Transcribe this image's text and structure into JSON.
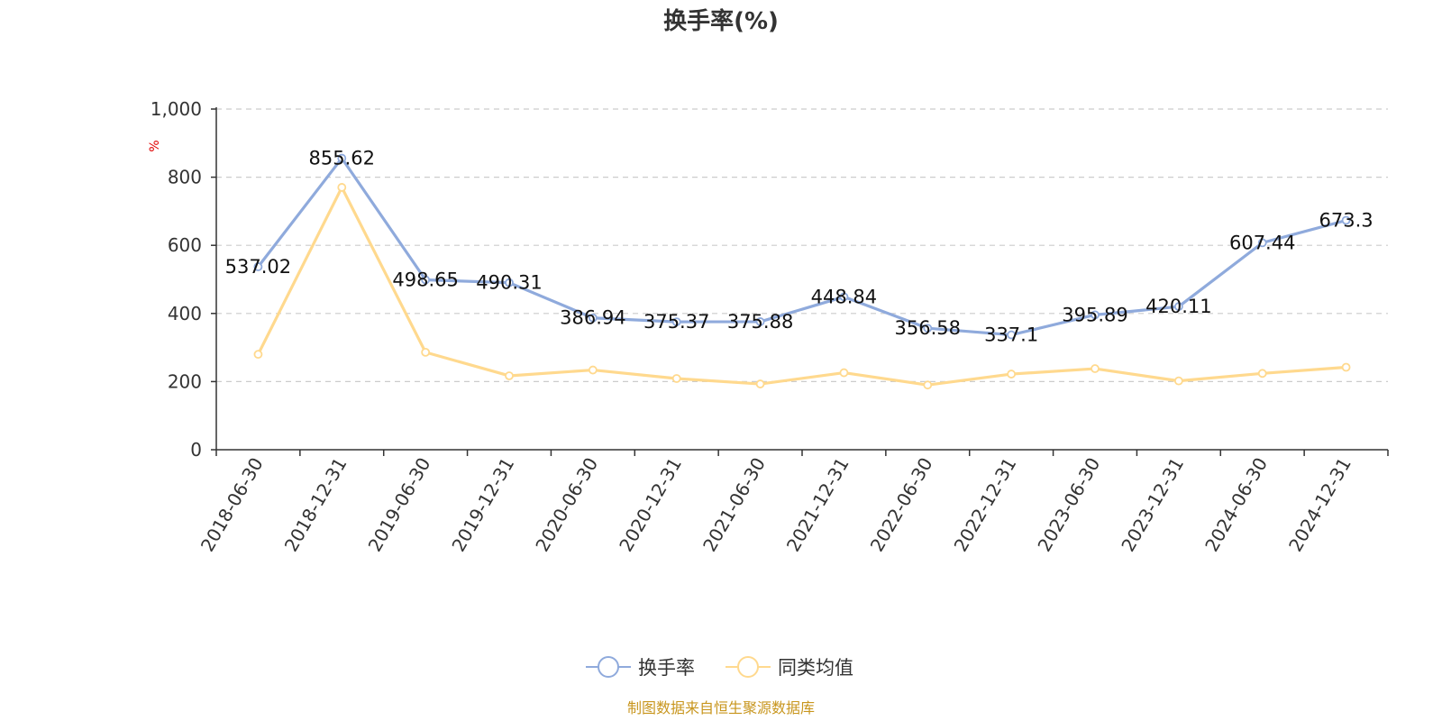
{
  "chart_data": {
    "type": "line",
    "title": "换手率(%)",
    "ylabel": "%",
    "ylim": [
      0,
      1000
    ],
    "yticks": [
      "0",
      "200",
      "400",
      "600",
      "800",
      "1,000"
    ],
    "ytick_values": [
      0,
      200,
      400,
      600,
      800,
      1000
    ],
    "categories": [
      "2018-06-30",
      "2018-12-31",
      "2019-06-30",
      "2019-12-31",
      "2020-06-30",
      "2020-12-31",
      "2021-06-30",
      "2021-12-31",
      "2022-06-30",
      "2022-12-31",
      "2023-06-30",
      "2023-12-31",
      "2024-06-30",
      "2024-12-31"
    ],
    "grid": true,
    "legend_position": "bottom",
    "series": [
      {
        "name": "换手率",
        "color": "#8faadc",
        "values": [
          537.02,
          855.62,
          498.65,
          490.31,
          386.94,
          375.37,
          375.88,
          448.84,
          356.58,
          337.1,
          395.89,
          420.11,
          607.44,
          673.3
        ],
        "labels": [
          "537.02",
          "855.62",
          "498.65",
          "490.31",
          "386.94",
          "375.37",
          "375.88",
          "448.84",
          "356.58",
          "337.1",
          "395.89",
          "420.11",
          "607.44",
          "673.3"
        ]
      },
      {
        "name": "同类均值",
        "color": "#ffd98e",
        "values": [
          280,
          770,
          286,
          217,
          234,
          209,
          193,
          226,
          190,
          222,
          238,
          202,
          224,
          242
        ]
      }
    ]
  },
  "source_note": "制图数据来自恒生聚源数据库"
}
